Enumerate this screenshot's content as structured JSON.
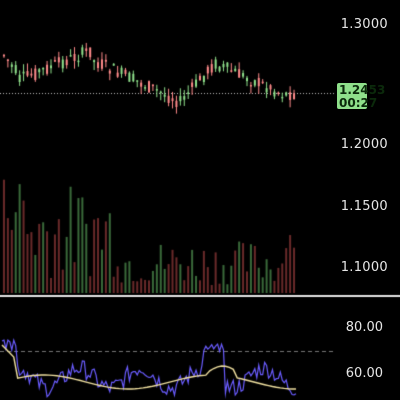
{
  "price_axis": {
    "ticks": [
      {
        "value": 1.3,
        "label": "1.3000"
      },
      {
        "value": 1.2,
        "label": "1.2000"
      },
      {
        "value": 1.15,
        "label": "1.1500"
      },
      {
        "value": 1.1,
        "label": "1.1000"
      }
    ]
  },
  "current_price": {
    "price": "1.2453",
    "countdown": "00:27"
  },
  "rsi_axis": {
    "ticks": [
      {
        "value": 80,
        "label": "80.00"
      },
      {
        "value": 60,
        "label": "60.00"
      }
    ]
  },
  "colors": {
    "background": "#000000",
    "candle_up": "#8fe08b",
    "candle_down": "#ff8a8a",
    "volume_up": "#3a6a3a",
    "volume_down": "#6a2a2a",
    "rsi_line": "#6a5cff",
    "rsi_signal": "#f0e0a0",
    "price_tag": "#8fe08b"
  },
  "chart_data": {
    "type": "candlestick",
    "price_current": 1.2453,
    "price_ylim": [
      1.223,
      1.276
    ],
    "rsi_levels": [
      80,
      60
    ]
  }
}
